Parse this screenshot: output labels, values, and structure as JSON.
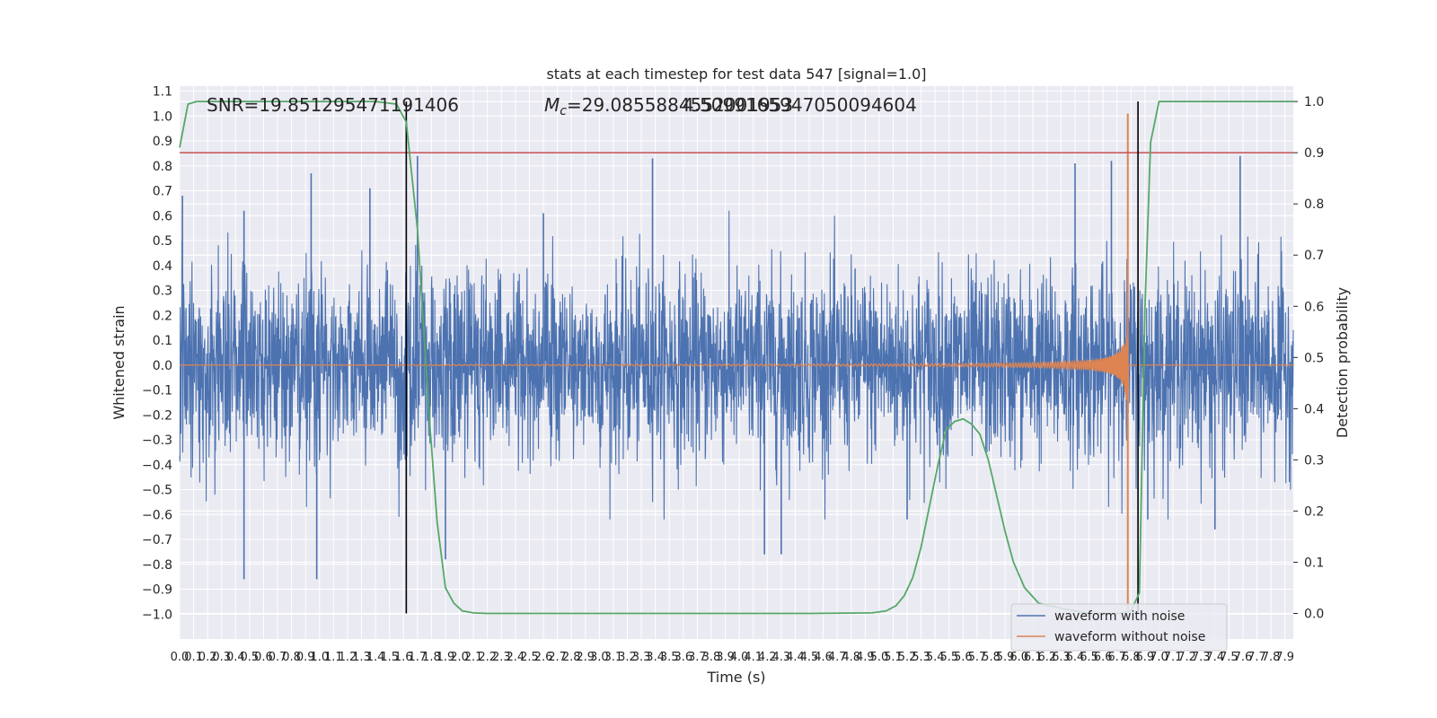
{
  "chart_data": {
    "type": "line",
    "title": "stats at each timestep for test data 547 [signal=1.0]",
    "xlabel": "Time (s)",
    "ylabel": "Whitened strain",
    "y2label": "Detection probability",
    "xlim": [
      0.0,
      7.96
    ],
    "ylim": [
      -1.1,
      1.12
    ],
    "y2lim": [
      -0.05,
      1.03
    ],
    "grid": true,
    "legend_position": "lower-right",
    "annotations": [
      "SNR=19.851295471191406",
      "$M_c$=29.0855884552001953",
      "4.5099165947050094604"
    ],
    "annotation_math": {
      "symbol": "M",
      "subscript": "c",
      "rest": "=29.0855884552001953"
    },
    "x_ticks": [
      "0.0",
      "0.1",
      "0.2",
      "0.3",
      "0.4",
      "0.5",
      "0.6",
      "0.7",
      "0.8",
      "0.9",
      "1.0",
      "1.1",
      "1.2",
      "1.3",
      "1.4",
      "1.5",
      "1.6",
      "1.7",
      "1.8",
      "1.9",
      "2.0",
      "2.1",
      "2.2",
      "2.3",
      "2.4",
      "2.5",
      "2.6",
      "2.7",
      "2.8",
      "2.9",
      "3.0",
      "3.1",
      "3.2",
      "3.3",
      "3.4",
      "3.5",
      "3.6",
      "3.7",
      "3.8",
      "3.9",
      "4.0",
      "4.1",
      "4.2",
      "4.3",
      "4.4",
      "4.5",
      "4.6",
      "4.7",
      "4.8",
      "4.9",
      "5.0",
      "5.1",
      "5.2",
      "5.3",
      "5.4",
      "5.5",
      "5.6",
      "5.7",
      "5.8",
      "5.9",
      "6.0",
      "6.1",
      "6.2",
      "6.3",
      "6.4",
      "6.5",
      "6.6",
      "6.7",
      "6.8",
      "6.9",
      "7.0",
      "7.1",
      "7.2",
      "7.3",
      "7.4",
      "7.5",
      "7.6",
      "7.7",
      "7.8",
      "7.9"
    ],
    "y_ticks": [
      "1.1",
      "1.0",
      "0.9",
      "0.8",
      "0.7",
      "0.6",
      "0.5",
      "0.4",
      "0.3",
      "0.2",
      "0.1",
      "0.0",
      "-0.1",
      "-0.2",
      "-0.3",
      "-0.4",
      "-0.5",
      "-0.6",
      "-0.7",
      "-0.8",
      "-0.9",
      "-1.0"
    ],
    "y2_ticks": [
      "1.0",
      "0.9",
      "0.8",
      "0.7",
      "0.6",
      "0.5",
      "0.4",
      "0.3",
      "0.2",
      "0.1",
      "0.0"
    ],
    "threshold": 0.9,
    "vlines": [
      1.62,
      6.85
    ],
    "series": [
      {
        "name": "waveform with noise",
        "color": "#4c72b0",
        "kind": "noise",
        "amplitude_envelope": {
          "x": [
            0.0,
            7.96
          ],
          "y": [
            0.42,
            0.42
          ]
        },
        "spikes": [
          {
            "x": 0.02,
            "y": 0.68
          },
          {
            "x": 0.46,
            "y": 0.62
          },
          {
            "x": 0.46,
            "y": -0.86
          },
          {
            "x": 0.94,
            "y": 0.77
          },
          {
            "x": 0.98,
            "y": -0.86
          },
          {
            "x": 1.36,
            "y": 0.71
          },
          {
            "x": 1.7,
            "y": 0.84
          },
          {
            "x": 1.9,
            "y": -0.78
          },
          {
            "x": 3.38,
            "y": 0.83
          },
          {
            "x": 4.18,
            "y": -0.76
          },
          {
            "x": 4.3,
            "y": -0.76
          },
          {
            "x": 6.4,
            "y": 0.81
          },
          {
            "x": 6.66,
            "y": 0.82
          },
          {
            "x": 7.58,
            "y": 0.84
          },
          {
            "x": 6.92,
            "y": -0.62
          },
          {
            "x": 5.2,
            "y": -0.62
          },
          {
            "x": 2.6,
            "y": 0.61
          },
          {
            "x": 7.4,
            "y": -0.66
          }
        ]
      },
      {
        "name": "waveform without noise",
        "color": "#dd8452",
        "kind": "chirp",
        "merger_time": 6.78,
        "start_time": 1.8,
        "peak_amplitude": 1.01,
        "trough_amplitude": -0.98
      },
      {
        "name": "",
        "color": "#55a868",
        "kind": "probability",
        "axis": "right",
        "x": [
          0.0,
          0.06,
          0.12,
          0.3,
          0.6,
          1.0,
          1.4,
          1.55,
          1.62,
          1.7,
          1.78,
          1.84,
          1.9,
          1.96,
          2.02,
          2.1,
          2.2,
          2.6,
          3.5,
          4.5,
          4.95,
          5.05,
          5.12,
          5.18,
          5.24,
          5.3,
          5.36,
          5.42,
          5.48,
          5.54,
          5.6,
          5.66,
          5.72,
          5.78,
          5.84,
          5.9,
          5.96,
          6.04,
          6.14,
          6.3,
          6.5,
          6.72,
          6.8,
          6.86,
          6.9,
          6.94,
          7.0,
          7.1,
          7.5,
          7.96
        ],
        "y": [
          0.91,
          0.995,
          1.0,
          1.0,
          1.0,
          1.0,
          1.0,
          0.995,
          0.96,
          0.75,
          0.4,
          0.18,
          0.05,
          0.02,
          0.005,
          0.001,
          0.0,
          0.0,
          0.0,
          0.0,
          0.001,
          0.005,
          0.015,
          0.035,
          0.07,
          0.13,
          0.21,
          0.29,
          0.36,
          0.375,
          0.38,
          0.37,
          0.35,
          0.3,
          0.23,
          0.16,
          0.1,
          0.05,
          0.02,
          0.01,
          0.0,
          0.0,
          0.005,
          0.04,
          0.6,
          0.92,
          1.0,
          1.0,
          1.0,
          1.0
        ]
      },
      {
        "name": "",
        "color": "#c44e52",
        "kind": "threshold",
        "axis": "right"
      }
    ]
  }
}
